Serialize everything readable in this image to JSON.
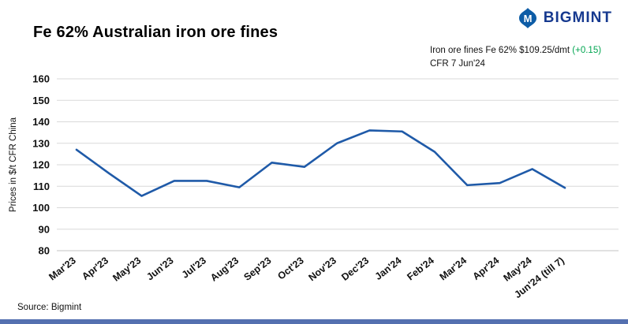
{
  "header": {
    "title": "Fe 62% Australian iron ore fines",
    "logo_text": "BIGMINT",
    "logo_color": "#16398f",
    "logo_icon_color": "#0d5ca6"
  },
  "annotation": {
    "line1": "Iron ore fines Fe 62% $109.25/dmt ",
    "change": "(+0.15)",
    "change_color": "#00a550",
    "line2": "CFR 7 Jun'24"
  },
  "footer": {
    "source": "Source: Bigmint"
  },
  "chart_data": {
    "type": "line",
    "title": "Fe 62% Australian iron ore fines",
    "xlabel": "",
    "ylabel": "Prices in $/t CFR China",
    "ylim": [
      80,
      160
    ],
    "ytick_step": 10,
    "grid": true,
    "grid_color": "#d9d9d9",
    "line_color": "#1f5aa8",
    "categories": [
      "Mar'23",
      "Apr'23",
      "May'23",
      "Jun'23",
      "Jul'23",
      "Aug'23",
      "Sep'23",
      "Oct'23",
      "Nov'23",
      "Dec'23",
      "Jan'24",
      "Feb'24",
      "Mar'24",
      "Apr'24",
      "May'24",
      "Jun'24 (till 7)"
    ],
    "values": [
      127,
      116,
      105.5,
      112.5,
      112.5,
      109.5,
      121,
      119,
      130,
      136,
      135.5,
      126,
      110.5,
      111.5,
      118,
      109.25
    ]
  }
}
